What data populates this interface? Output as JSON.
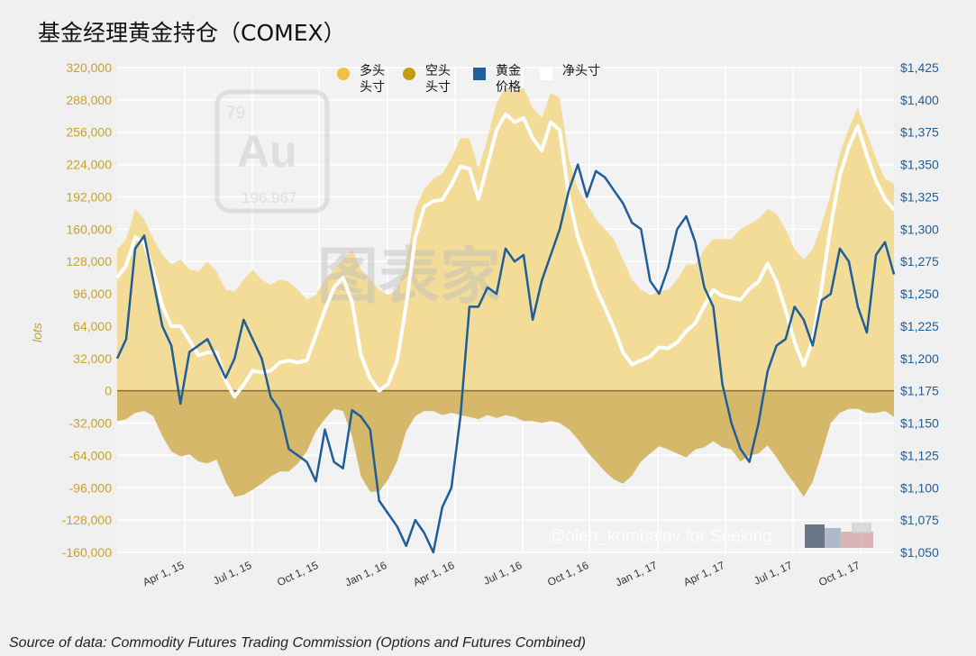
{
  "chart_data": {
    "type": "area",
    "title": "基金经理黄金持仓（COMEX）",
    "ylabel": "lots",
    "ylim_left": [
      -160000,
      320000
    ],
    "ylim_right": [
      1050,
      1425
    ],
    "yticks_left": [
      "320,000",
      "288,000",
      "256,000",
      "224,000",
      "192,000",
      "160,000",
      "128,000",
      "96,000",
      "64,000",
      "32,000",
      "0",
      "-32,000",
      "-64,000",
      "-96,000",
      "-128,000",
      "-160,000"
    ],
    "yticks_right": [
      "$1,425",
      "$1,400",
      "$1,375",
      "$1,350",
      "$1,325",
      "$1,300",
      "$1,275",
      "$1,250",
      "$1,225",
      "$1,200",
      "$1,175",
      "$1,150",
      "$1,125",
      "$1,100",
      "$1,075",
      "$1,050"
    ],
    "xtick_labels": [
      "Apr 1, 15",
      "Jul 1, 15",
      "Oct 1, 15",
      "Jan 1, 16",
      "Apr 1, 16",
      "Jul 1, 16",
      "Oct 1, 16",
      "Jan 1, 17",
      "Apr 1, 17",
      "Jul 1, 17",
      "Oct 1, 17"
    ],
    "legend": [
      {
        "label_line1": "多头",
        "label_line2": "头寸",
        "color": "#f0c040",
        "shape": "circle"
      },
      {
        "label_line1": "空头",
        "label_line2": "头寸",
        "color": "#c49a14",
        "shape": "circle"
      },
      {
        "label_line1": "黄金",
        "label_line2": "价格",
        "color": "#1f5e99",
        "shape": "square"
      },
      {
        "label_line1": "净头寸",
        "label_line2": "",
        "color": "#ffffff",
        "shape": "square"
      }
    ],
    "colors": {
      "long": "#f2dc98",
      "short": "#d6b86a",
      "zero_line": "#8c7030",
      "gold": "#1f5e99",
      "net": "#ffffff"
    },
    "series": [
      {
        "name": "多头头寸",
        "values": [
          140000,
          150000,
          180000,
          170000,
          150000,
          135000,
          125000,
          130000,
          120000,
          118000,
          128000,
          118000,
          100000,
          98000,
          110000,
          120000,
          110000,
          105000,
          110000,
          108000,
          100000,
          90000,
          95000,
          110000,
          120000,
          130000,
          140000,
          120000,
          110000,
          100000,
          95000,
          100000,
          125000,
          180000,
          200000,
          210000,
          215000,
          230000,
          250000,
          250000,
          220000,
          250000,
          285000,
          300000,
          295000,
          300000,
          280000,
          270000,
          295000,
          290000,
          230000,
          200000,
          185000,
          170000,
          160000,
          150000,
          130000,
          110000,
          100000,
          95000,
          98000,
          100000,
          110000,
          125000,
          125000,
          140000,
          150000,
          150000,
          150000,
          160000,
          165000,
          170000,
          180000,
          175000,
          160000,
          140000,
          130000,
          140000,
          165000,
          195000,
          235000,
          260000,
          280000,
          255000,
          230000,
          210000,
          205000
        ]
      },
      {
        "name": "空头头寸",
        "values": [
          -30000,
          -28000,
          -22000,
          -20000,
          -25000,
          -45000,
          -60000,
          -65000,
          -63000,
          -70000,
          -72000,
          -68000,
          -90000,
          -105000,
          -103000,
          -98000,
          -92000,
          -85000,
          -80000,
          -80000,
          -72000,
          -60000,
          -40000,
          -28000,
          -18000,
          -20000,
          -45000,
          -85000,
          -100000,
          -100000,
          -88000,
          -70000,
          -40000,
          -25000,
          -20000,
          -20000,
          -24000,
          -22000,
          -24000,
          -26000,
          -28000,
          -24000,
          -27000,
          -24000,
          -26000,
          -30000,
          -30000,
          -32000,
          -30000,
          -32000,
          -38000,
          -48000,
          -60000,
          -70000,
          -80000,
          -88000,
          -92000,
          -84000,
          -70000,
          -62000,
          -55000,
          -58000,
          -62000,
          -66000,
          -58000,
          -56000,
          -50000,
          -56000,
          -58000,
          -70000,
          -64000,
          -62000,
          -54000,
          -66000,
          -80000,
          -92000,
          -105000,
          -90000,
          -62000,
          -32000,
          -22000,
          -18000,
          -18000,
          -22000,
          -22000,
          -20000,
          -26000
        ]
      },
      {
        "name": "净头寸",
        "values": [
          112000,
          124000,
          152000,
          146000,
          118000,
          84000,
          64000,
          64000,
          50000,
          35000,
          38000,
          38000,
          10000,
          -6000,
          6000,
          20000,
          18000,
          20000,
          28000,
          30000,
          28000,
          30000,
          55000,
          80000,
          102000,
          112000,
          88000,
          35000,
          12000,
          0,
          7000,
          30000,
          85000,
          152000,
          182000,
          188000,
          189000,
          204000,
          222000,
          220000,
          190000,
          224000,
          258000,
          274000,
          266000,
          270000,
          250000,
          238000,
          266000,
          258000,
          192000,
          152000,
          128000,
          102000,
          82000,
          62000,
          38000,
          26000,
          30000,
          34000,
          43000,
          42000,
          48000,
          59000,
          67000,
          84000,
          100000,
          94000,
          92000,
          90000,
          101000,
          108000,
          126000,
          108000,
          80000,
          48000,
          25000,
          50000,
          103000,
          163000,
          213000,
          242000,
          262000,
          233000,
          208000,
          190000,
          179000
        ]
      },
      {
        "name": "黄金价格",
        "values": [
          1200,
          1215,
          1285,
          1295,
          1260,
          1225,
          1210,
          1165,
          1205,
          1210,
          1215,
          1200,
          1185,
          1200,
          1230,
          1215,
          1200,
          1170,
          1160,
          1130,
          1125,
          1120,
          1105,
          1145,
          1120,
          1115,
          1160,
          1155,
          1145,
          1090,
          1080,
          1070,
          1055,
          1075,
          1065,
          1050,
          1085,
          1100,
          1155,
          1240,
          1240,
          1255,
          1250,
          1285,
          1275,
          1280,
          1230,
          1260,
          1280,
          1300,
          1330,
          1350,
          1325,
          1345,
          1340,
          1330,
          1320,
          1305,
          1300,
          1260,
          1250,
          1270,
          1300,
          1310,
          1290,
          1255,
          1240,
          1180,
          1150,
          1130,
          1120,
          1150,
          1190,
          1210,
          1215,
          1240,
          1230,
          1210,
          1245,
          1250,
          1285,
          1275,
          1240,
          1220,
          1280,
          1290,
          1265
        ]
      }
    ]
  },
  "watermark": {
    "au_number": "79",
    "au_symbol": "Au",
    "au_mass": "196.967",
    "site_text": "图表家",
    "credit_text": "@oleh_kombalov for Seeking"
  },
  "footer": {
    "source": "Source of data: Commodity Futures Trading Commission (Options and Futures Combined)"
  }
}
